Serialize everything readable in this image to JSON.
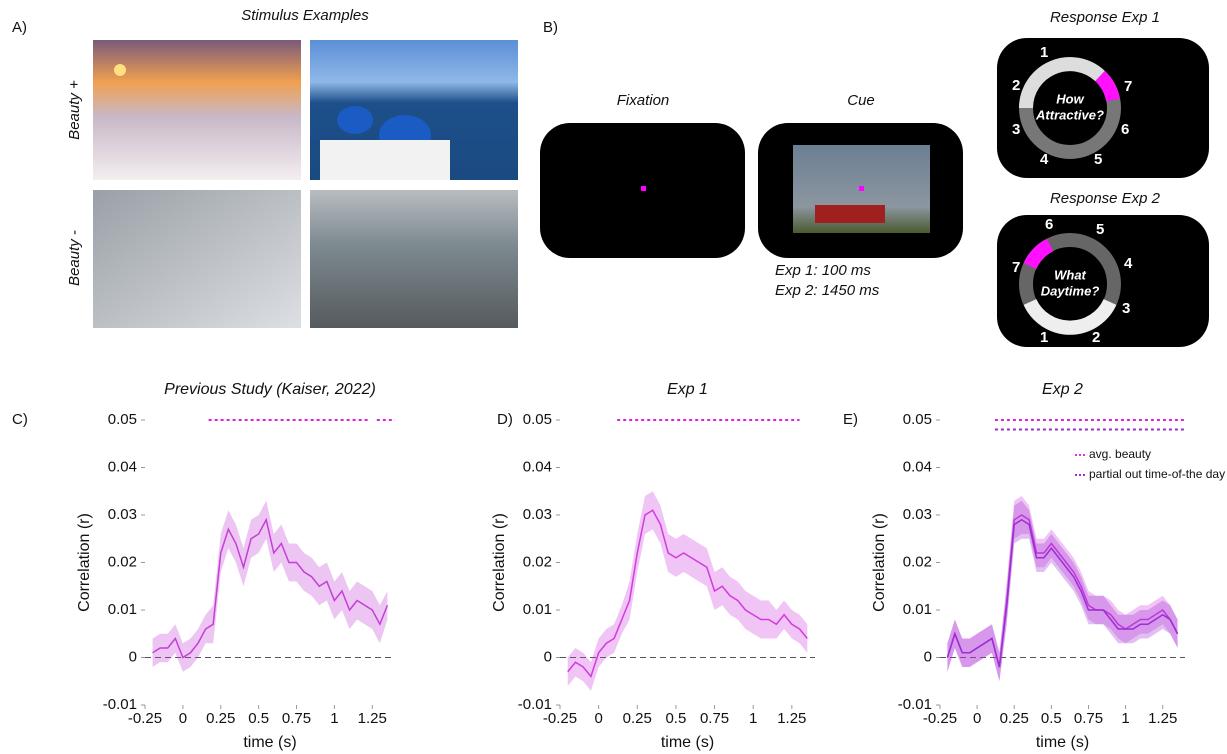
{
  "panels": {
    "a": {
      "label": "A)",
      "title": "Stimulus Examples",
      "rows": [
        "Beauty +",
        "Beauty -"
      ]
    },
    "b": {
      "label": "B)",
      "fixation": "Fixation",
      "cue": "Cue",
      "timing": [
        "Exp 1: 100 ms",
        "Exp 2: 1450 ms"
      ],
      "response1": {
        "title": "Response Exp 1",
        "question": [
          "How",
          "Attractive?"
        ],
        "numbers": [
          "1",
          "2",
          "3",
          "4",
          "5",
          "6",
          "7"
        ]
      },
      "response2": {
        "title": "Response Exp 2",
        "question": [
          "What",
          "Daytime?"
        ],
        "numbers": [
          "1",
          "2",
          "3",
          "4",
          "5",
          "6",
          "7"
        ]
      }
    }
  },
  "chart_data": [
    {
      "type": "line",
      "panel_label": "C)",
      "title": "Previous Study (Kaiser, 2022)",
      "xlabel": "time (s)",
      "ylabel": "Correlation (r)",
      "x": [
        -0.2,
        -0.15,
        -0.1,
        -0.05,
        0,
        0.05,
        0.1,
        0.15,
        0.2,
        0.25,
        0.3,
        0.35,
        0.4,
        0.45,
        0.5,
        0.55,
        0.6,
        0.65,
        0.7,
        0.75,
        0.8,
        0.85,
        0.9,
        0.95,
        1,
        1.05,
        1.1,
        1.15,
        1.2,
        1.25,
        1.3,
        1.35
      ],
      "xlim": [
        -0.25,
        1.4
      ],
      "xticks": [
        -0.25,
        0,
        0.25,
        0.5,
        0.75,
        1,
        1.25
      ],
      "ylim": [
        -0.01,
        0.05
      ],
      "yticks": [
        -0.01,
        0,
        0.01,
        0.02,
        0.03,
        0.04,
        0.05
      ],
      "series": [
        {
          "color": "#c43fd6",
          "values": [
            0.001,
            0.002,
            0.002,
            0.004,
            0.0,
            0.001,
            0.003,
            0.006,
            0.007,
            0.022,
            0.027,
            0.024,
            0.019,
            0.025,
            0.026,
            0.029,
            0.022,
            0.024,
            0.02,
            0.02,
            0.018,
            0.017,
            0.015,
            0.016,
            0.012,
            0.014,
            0.01,
            0.012,
            0.011,
            0.01,
            0.007,
            0.011
          ],
          "errors": [
            0.003,
            0.003,
            0.003,
            0.003,
            0.003,
            0.003,
            0.003,
            0.003,
            0.004,
            0.004,
            0.004,
            0.004,
            0.004,
            0.004,
            0.004,
            0.004,
            0.004,
            0.004,
            0.004,
            0.004,
            0.004,
            0.004,
            0.004,
            0.004,
            0.004,
            0.004,
            0.004,
            0.004,
            0.004,
            0.004,
            0.004,
            0.003
          ]
        }
      ],
      "significance": [
        {
          "color": "#e020e0",
          "y": 0.05,
          "from": 0.17,
          "to": 1.22
        },
        {
          "color": "#e020e0",
          "y": 0.05,
          "from": 1.28,
          "to": 1.4
        }
      ]
    },
    {
      "type": "line",
      "panel_label": "D)",
      "title": "Exp 1",
      "xlabel": "time (s)",
      "ylabel": "Correlation (r)",
      "x": [
        -0.2,
        -0.15,
        -0.1,
        -0.05,
        0,
        0.05,
        0.1,
        0.15,
        0.2,
        0.25,
        0.3,
        0.35,
        0.4,
        0.45,
        0.5,
        0.55,
        0.6,
        0.65,
        0.7,
        0.75,
        0.8,
        0.85,
        0.9,
        0.95,
        1,
        1.05,
        1.1,
        1.15,
        1.2,
        1.25,
        1.3,
        1.35
      ],
      "xlim": [
        -0.25,
        1.4
      ],
      "xticks": [
        -0.25,
        0,
        0.25,
        0.5,
        0.75,
        1,
        1.25
      ],
      "ylim": [
        -0.01,
        0.05
      ],
      "yticks": [
        -0.01,
        0,
        0.01,
        0.02,
        0.03,
        0.04,
        0.05
      ],
      "series": [
        {
          "color": "#d23be0",
          "values": [
            -0.003,
            -0.001,
            -0.002,
            -0.004,
            0.001,
            0.003,
            0.004,
            0.008,
            0.012,
            0.022,
            0.03,
            0.031,
            0.028,
            0.022,
            0.021,
            0.022,
            0.021,
            0.02,
            0.019,
            0.014,
            0.015,
            0.013,
            0.012,
            0.01,
            0.009,
            0.008,
            0.008,
            0.007,
            0.009,
            0.007,
            0.006,
            0.004
          ],
          "errors": [
            0.003,
            0.003,
            0.003,
            0.003,
            0.003,
            0.003,
            0.003,
            0.003,
            0.004,
            0.004,
            0.004,
            0.004,
            0.004,
            0.004,
            0.004,
            0.004,
            0.004,
            0.004,
            0.004,
            0.004,
            0.004,
            0.004,
            0.004,
            0.004,
            0.004,
            0.004,
            0.004,
            0.003,
            0.003,
            0.003,
            0.003,
            0.003
          ]
        }
      ],
      "significance": [
        {
          "color": "#e020e0",
          "y": 0.05,
          "from": 0.12,
          "to": 1.3
        }
      ]
    },
    {
      "type": "line",
      "panel_label": "E)",
      "title": "Exp 2",
      "xlabel": "time (s)",
      "ylabel": "Correlation (r)",
      "legend": "upper right",
      "x": [
        -0.2,
        -0.15,
        -0.1,
        -0.05,
        0,
        0.05,
        0.1,
        0.15,
        0.2,
        0.25,
        0.3,
        0.35,
        0.4,
        0.45,
        0.5,
        0.55,
        0.6,
        0.65,
        0.7,
        0.75,
        0.8,
        0.85,
        0.9,
        0.95,
        1,
        1.05,
        1.1,
        1.15,
        1.2,
        1.25,
        1.3,
        1.35
      ],
      "xlim": [
        -0.25,
        1.4
      ],
      "xticks": [
        -0.25,
        0,
        0.25,
        0.5,
        0.75,
        1,
        1.25
      ],
      "ylim": [
        -0.01,
        0.05
      ],
      "yticks": [
        -0.01,
        0,
        0.01,
        0.02,
        0.03,
        0.04,
        0.05
      ],
      "series": [
        {
          "name": "avg. beauty",
          "color": "#d23be0",
          "values": [
            0.0,
            0.005,
            0.001,
            0.001,
            0.002,
            0.003,
            0.004,
            -0.002,
            0.012,
            0.029,
            0.03,
            0.029,
            0.022,
            0.022,
            0.024,
            0.022,
            0.02,
            0.018,
            0.015,
            0.011,
            0.01,
            0.01,
            0.009,
            0.007,
            0.006,
            0.007,
            0.008,
            0.008,
            0.009,
            0.01,
            0.008,
            0.005
          ],
          "errors": [
            0.003,
            0.003,
            0.003,
            0.003,
            0.003,
            0.003,
            0.003,
            0.003,
            0.004,
            0.004,
            0.004,
            0.003,
            0.003,
            0.003,
            0.003,
            0.003,
            0.003,
            0.003,
            0.003,
            0.003,
            0.003,
            0.003,
            0.003,
            0.003,
            0.003,
            0.003,
            0.003,
            0.003,
            0.003,
            0.003,
            0.003,
            0.003
          ]
        },
        {
          "name": "partial out time-of-the day",
          "color": "#9b2fd0",
          "values": [
            0.0,
            0.005,
            0.001,
            0.001,
            0.002,
            0.003,
            0.004,
            -0.002,
            0.011,
            0.028,
            0.029,
            0.028,
            0.021,
            0.021,
            0.023,
            0.021,
            0.019,
            0.017,
            0.014,
            0.01,
            0.01,
            0.01,
            0.008,
            0.006,
            0.006,
            0.006,
            0.007,
            0.007,
            0.008,
            0.009,
            0.008,
            0.005
          ],
          "errors": [
            0.003,
            0.003,
            0.003,
            0.003,
            0.003,
            0.003,
            0.003,
            0.003,
            0.004,
            0.004,
            0.004,
            0.003,
            0.003,
            0.003,
            0.003,
            0.003,
            0.003,
            0.003,
            0.003,
            0.003,
            0.003,
            0.003,
            0.003,
            0.003,
            0.003,
            0.003,
            0.003,
            0.003,
            0.003,
            0.003,
            0.003,
            0.003
          ]
        }
      ],
      "significance": [
        {
          "color": "#e020e0",
          "y": 0.05,
          "from": 0.12,
          "to": 1.4
        },
        {
          "color": "#9b2fd0",
          "y": 0.048,
          "from": 0.12,
          "to": 1.4
        }
      ]
    }
  ]
}
